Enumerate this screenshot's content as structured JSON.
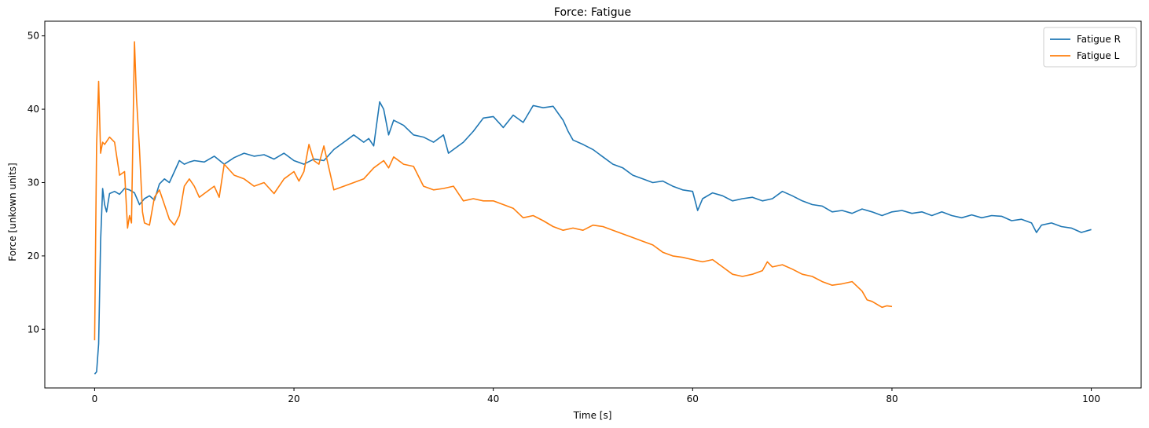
{
  "chart_data": {
    "type": "line",
    "title": "Force: Fatigue",
    "xlabel": "Time [s]",
    "ylabel": "Force [unkown units]",
    "xlim": [
      -5,
      105
    ],
    "ylim": [
      2,
      52
    ],
    "xticks": [
      0,
      20,
      40,
      60,
      80,
      100
    ],
    "yticks": [
      10,
      20,
      30,
      40,
      50
    ],
    "grid": false,
    "legend_position": "top-right",
    "series": [
      {
        "name": "Fatigue R",
        "color": "#1f77b4",
        "x": [
          0,
          0.2,
          0.4,
          0.6,
          0.8,
          1.0,
          1.2,
          1.5,
          2.0,
          2.5,
          3.0,
          3.5,
          4.0,
          4.5,
          5.0,
          5.5,
          6.0,
          6.5,
          7.0,
          7.5,
          8.0,
          8.5,
          9.0,
          9.5,
          10.0,
          11.0,
          12.0,
          13.0,
          14.0,
          15.0,
          16.0,
          17.0,
          18.0,
          19.0,
          20.0,
          21.0,
          22.0,
          23.0,
          24.0,
          25.0,
          26.0,
          27.0,
          27.5,
          28.0,
          28.6,
          29.0,
          29.5,
          30.0,
          31.0,
          32.0,
          33.0,
          34.0,
          35.0,
          35.5,
          36.0,
          37.0,
          38.0,
          39.0,
          40.0,
          41.0,
          42.0,
          43.0,
          44.0,
          45.0,
          46.0,
          47.0,
          47.5,
          48.0,
          49.0,
          50.0,
          51.0,
          52.0,
          53.0,
          54.0,
          55.0,
          56.0,
          57.0,
          58.0,
          59.0,
          60.0,
          60.5,
          61.0,
          62.0,
          63.0,
          64.0,
          65.0,
          66.0,
          67.0,
          68.0,
          69.0,
          70.0,
          71.0,
          72.0,
          73.0,
          74.0,
          75.0,
          76.0,
          77.0,
          78.0,
          79.0,
          80.0,
          81.0,
          82.0,
          83.0,
          84.0,
          85.0,
          86.0,
          87.0,
          88.0,
          89.0,
          90.0,
          91.0,
          92.0,
          93.0,
          94.0,
          94.5,
          95.0,
          96.0,
          97.0,
          98.0,
          99.0,
          100.0
        ],
        "y": [
          3.9,
          4.2,
          8.0,
          22.0,
          29.2,
          27.0,
          26.0,
          28.5,
          28.8,
          28.4,
          29.2,
          29.0,
          28.6,
          27.0,
          27.8,
          28.2,
          27.6,
          29.8,
          30.5,
          30.0,
          31.5,
          33.0,
          32.5,
          32.8,
          33.0,
          32.8,
          33.6,
          32.5,
          33.4,
          34.0,
          33.6,
          33.8,
          33.2,
          34.0,
          33.0,
          32.5,
          33.2,
          33.0,
          34.5,
          35.5,
          36.5,
          35.5,
          36.0,
          35.0,
          41.0,
          40.0,
          36.5,
          38.5,
          37.8,
          36.5,
          36.2,
          35.5,
          36.5,
          34.0,
          34.5,
          35.5,
          37.0,
          38.8,
          39.0,
          37.5,
          39.2,
          38.2,
          40.5,
          40.2,
          40.4,
          38.5,
          37.0,
          35.8,
          35.2,
          34.5,
          33.5,
          32.5,
          32.0,
          31.0,
          30.5,
          30.0,
          30.2,
          29.5,
          29.0,
          28.8,
          26.2,
          27.8,
          28.6,
          28.2,
          27.5,
          27.8,
          28.0,
          27.5,
          27.8,
          28.8,
          28.2,
          27.5,
          27.0,
          26.8,
          26.0,
          26.2,
          25.8,
          26.4,
          26.0,
          25.5,
          26.0,
          26.2,
          25.8,
          26.0,
          25.5,
          26.0,
          25.5,
          25.2,
          25.6,
          25.2,
          25.5,
          25.4,
          24.8,
          25.0,
          24.5,
          23.2,
          24.2,
          24.5,
          24.0,
          23.8,
          23.2,
          23.6
        ]
      },
      {
        "name": "Fatigue L",
        "color": "#ff7f0e",
        "x": [
          0,
          0.2,
          0.4,
          0.6,
          0.8,
          1.0,
          1.5,
          2.0,
          2.5,
          3.0,
          3.3,
          3.5,
          3.7,
          4.0,
          4.2,
          4.5,
          4.8,
          5.0,
          5.5,
          6.0,
          6.5,
          7.0,
          7.5,
          8.0,
          8.5,
          9.0,
          9.5,
          10.0,
          10.5,
          11.0,
          12.0,
          12.5,
          13.0,
          14.0,
          15.0,
          16.0,
          17.0,
          18.0,
          19.0,
          20.0,
          20.5,
          21.0,
          21.5,
          22.0,
          22.5,
          23.0,
          24.0,
          25.0,
          26.0,
          27.0,
          28.0,
          29.0,
          29.5,
          30.0,
          31.0,
          32.0,
          33.0,
          34.0,
          35.0,
          36.0,
          37.0,
          38.0,
          39.0,
          40.0,
          41.0,
          42.0,
          43.0,
          44.0,
          45.0,
          46.0,
          47.0,
          48.0,
          49.0,
          50.0,
          51.0,
          52.0,
          53.0,
          54.0,
          55.0,
          56.0,
          57.0,
          58.0,
          59.0,
          60.0,
          61.0,
          62.0,
          63.0,
          64.0,
          65.0,
          66.0,
          67.0,
          67.5,
          68.0,
          69.0,
          70.0,
          71.0,
          72.0,
          73.0,
          74.0,
          75.0,
          76.0,
          77.0,
          77.5,
          78.0,
          79.0,
          79.5,
          80.0
        ],
        "y": [
          8.5,
          35.0,
          43.8,
          34.0,
          35.5,
          35.2,
          36.2,
          35.5,
          31.0,
          31.5,
          23.8,
          25.5,
          24.5,
          49.2,
          41.5,
          34.5,
          26.0,
          24.5,
          24.2,
          28.0,
          29.0,
          27.0,
          25.0,
          24.2,
          25.5,
          29.5,
          30.5,
          29.5,
          28.0,
          28.5,
          29.5,
          28.0,
          32.5,
          31.0,
          30.5,
          29.5,
          30.0,
          28.5,
          30.5,
          31.5,
          30.2,
          31.5,
          35.2,
          33.0,
          32.5,
          35.0,
          29.0,
          29.5,
          30.0,
          30.5,
          32.0,
          33.0,
          32.0,
          33.5,
          32.5,
          32.2,
          29.5,
          29.0,
          29.2,
          29.5,
          27.5,
          27.8,
          27.5,
          27.5,
          27.0,
          26.5,
          25.2,
          25.5,
          24.8,
          24.0,
          23.5,
          23.8,
          23.5,
          24.2,
          24.0,
          23.5,
          23.0,
          22.5,
          22.0,
          21.5,
          20.5,
          20.0,
          19.8,
          19.5,
          19.2,
          19.5,
          18.5,
          17.5,
          17.2,
          17.5,
          18.0,
          19.2,
          18.5,
          18.8,
          18.2,
          17.5,
          17.2,
          16.5,
          16.0,
          16.2,
          16.5,
          15.2,
          14.0,
          13.8,
          13.0,
          13.2,
          13.1
        ]
      }
    ]
  }
}
